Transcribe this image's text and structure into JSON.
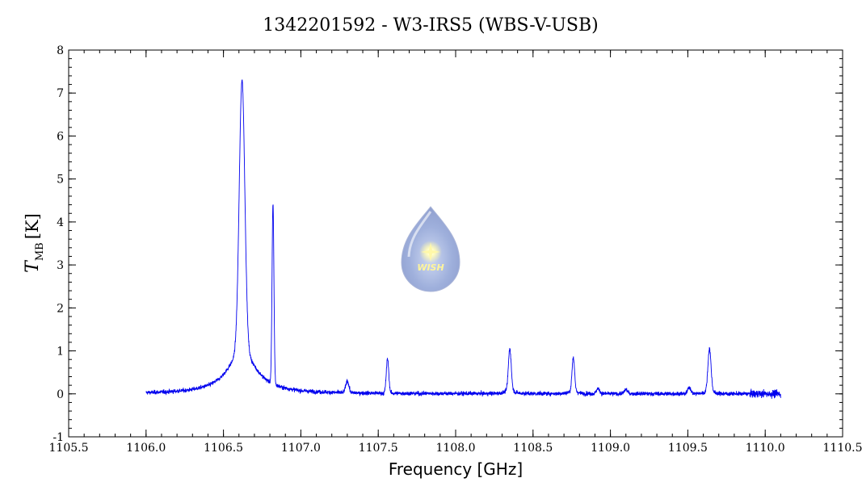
{
  "chart_data": {
    "type": "line",
    "title": "1342201592 - W3-IRS5 (WBS-V-USB)",
    "xlabel": "Frequency [GHz]",
    "ylabel_main": "T",
    "ylabel_sub": "MB",
    "ylabel_unit": "[K]",
    "xlim": [
      1105.5,
      1110.5
    ],
    "ylim": [
      -1,
      8
    ],
    "x_ticks": [
      "1105.5",
      "1106.0",
      "1106.5",
      "1107.0",
      "1107.5",
      "1108.0",
      "1108.5",
      "1109.0",
      "1109.5",
      "1110.0",
      "1110.5"
    ],
    "y_ticks": [
      "-1",
      "0",
      "1",
      "2",
      "3",
      "4",
      "5",
      "6",
      "7",
      "8"
    ],
    "grid": false,
    "line_color": "#0000ee",
    "x_range": [
      1106.0,
      1110.1
    ],
    "series": [
      {
        "baseline": 0.0,
        "noise_rms": 0.045,
        "peaks": [
          {
            "x": 1106.62,
            "height": 7.3
          },
          {
            "x": 1106.82,
            "height": 4.2
          },
          {
            "x": 1107.3,
            "height": 0.28
          },
          {
            "x": 1107.56,
            "height": 0.8
          },
          {
            "x": 1108.35,
            "height": 1.05
          },
          {
            "x": 1108.76,
            "height": 0.85
          },
          {
            "x": 1108.92,
            "height": 0.12
          },
          {
            "x": 1109.1,
            "height": 0.1
          },
          {
            "x": 1109.51,
            "height": 0.15
          },
          {
            "x": 1109.64,
            "height": 1.05
          }
        ]
      }
    ],
    "logo": {
      "text": "WISH"
    }
  }
}
